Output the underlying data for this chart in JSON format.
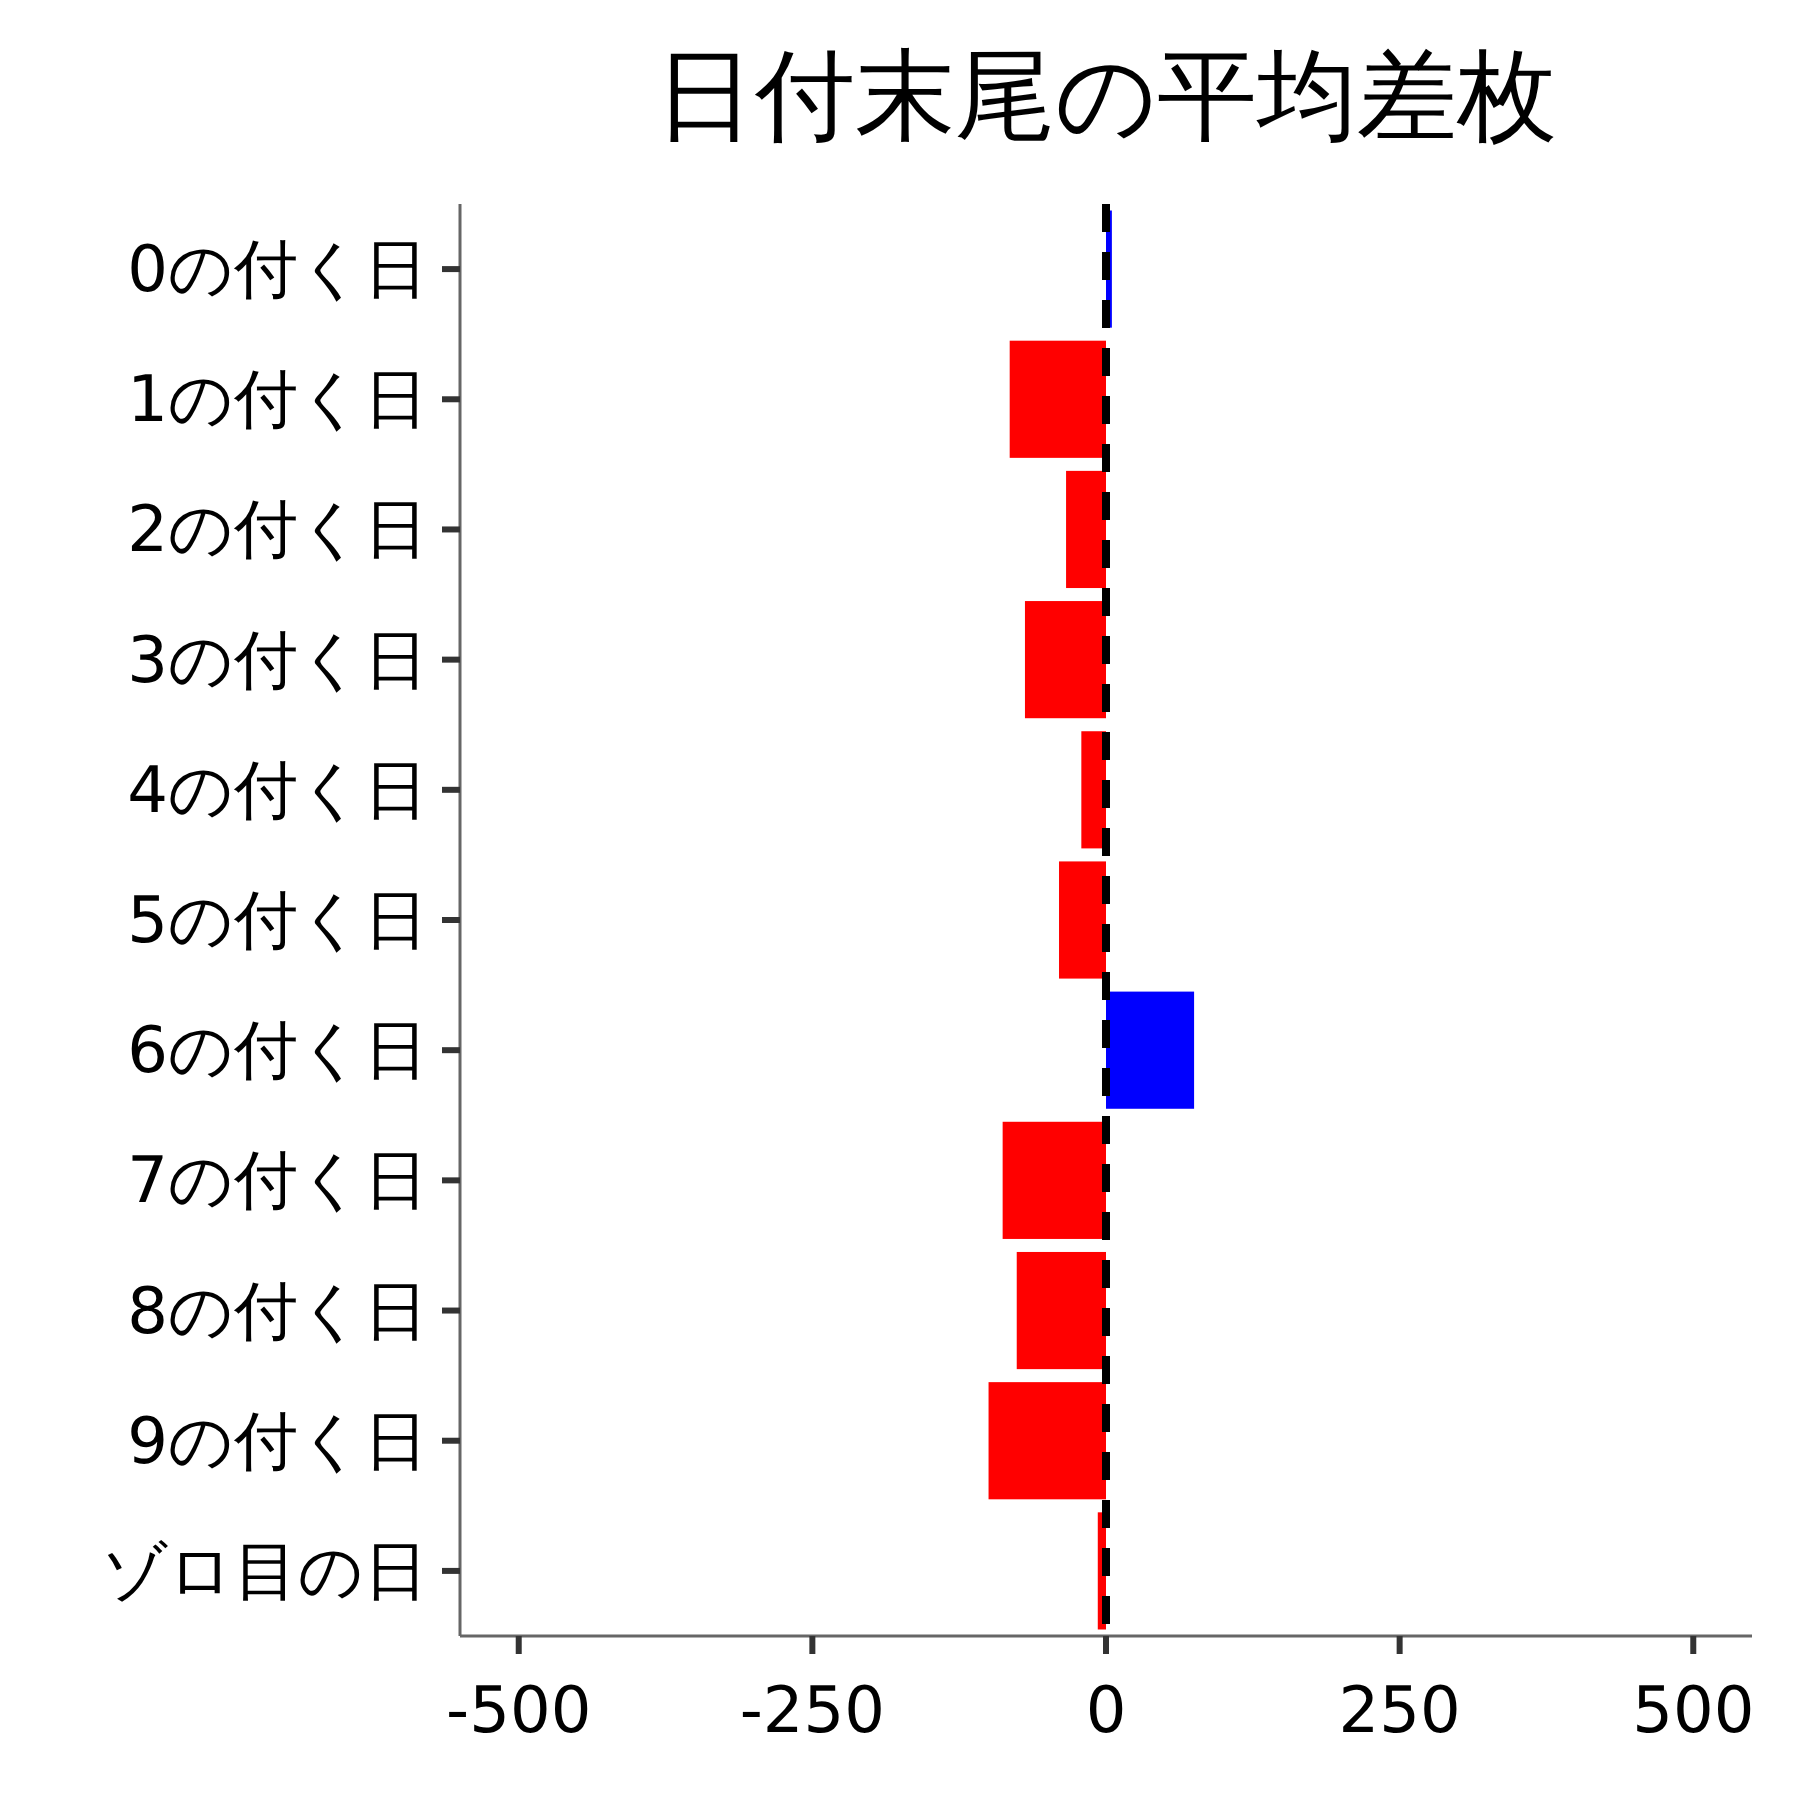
{
  "chart_data": {
    "type": "bar",
    "orientation": "horizontal",
    "title": "日付末尾の平均差枚",
    "categories": [
      "0の付く日",
      "1の付く日",
      "2の付く日",
      "3の付く日",
      "4の付く日",
      "5の付く日",
      "6の付く日",
      "7の付く日",
      "8の付く日",
      "9の付く日",
      "ゾロ目の日"
    ],
    "values": [
      5,
      -82,
      -34,
      -69,
      -21,
      -40,
      75,
      -88,
      -76,
      -100,
      -7
    ],
    "colors": [
      "#0000ff",
      "#ff0000",
      "#ff0000",
      "#ff0000",
      "#ff0000",
      "#ff0000",
      "#0000ff",
      "#ff0000",
      "#ff0000",
      "#ff0000",
      "#ff0000"
    ],
    "xlim": [
      -550,
      550
    ],
    "xticks": [
      -500,
      -250,
      0,
      250,
      500
    ],
    "ref_lines": [
      {
        "axis": "x",
        "value": 0,
        "color": "#000000",
        "line_style": "dashed"
      }
    ],
    "grid": false
  }
}
